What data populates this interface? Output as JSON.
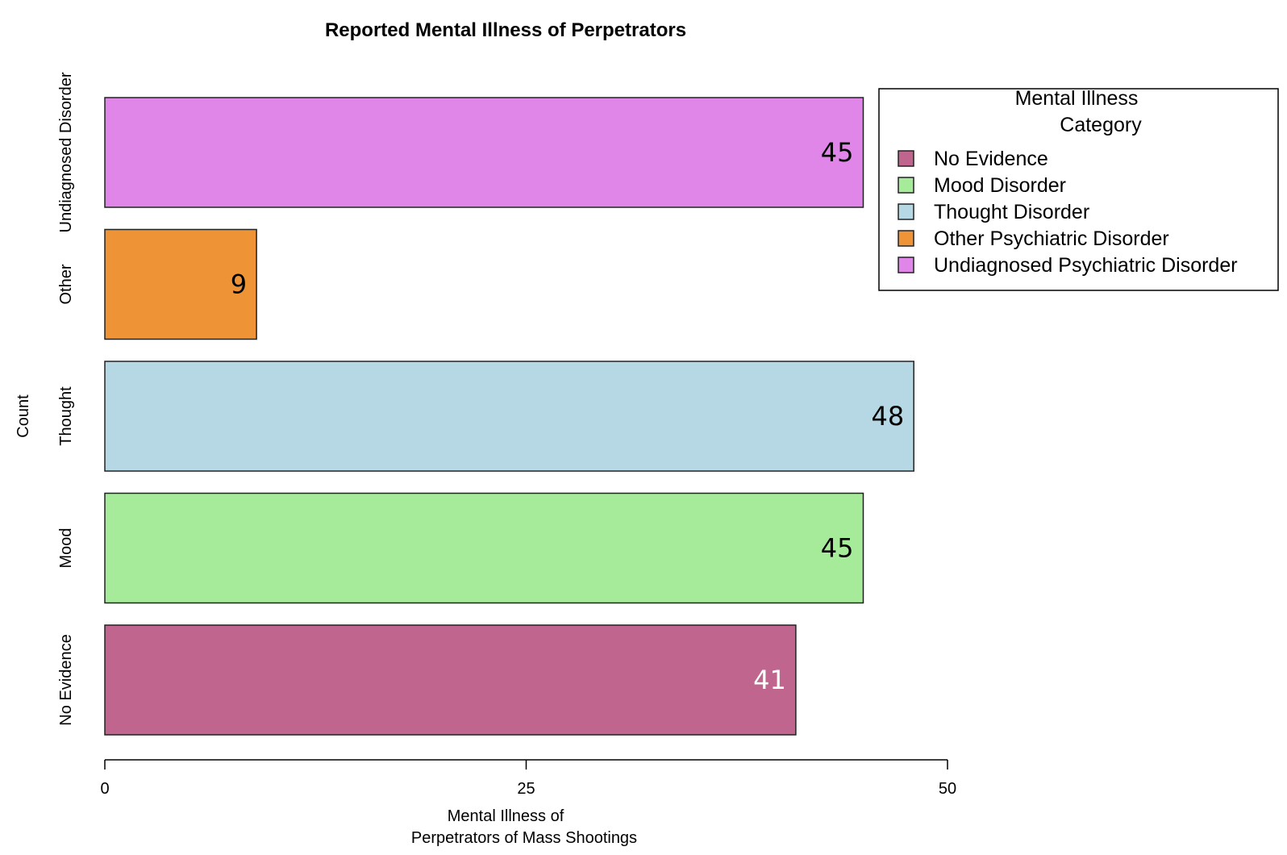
{
  "chart_data": {
    "type": "bar",
    "orientation": "horizontal",
    "title": "Reported Mental Illness of Perpetrators",
    "xlabel_lines": [
      "Mental Illness of",
      "Perpetrators of Mass Shootings"
    ],
    "ylabel": "Count",
    "xlim": [
      0,
      50
    ],
    "xticks": [
      0,
      25,
      50
    ],
    "categories": [
      "No Evidence",
      "Mood",
      "Thought",
      "Other",
      "Undiagnosed Disorder"
    ],
    "values": [
      41,
      45,
      48,
      9,
      45
    ],
    "value_labels": [
      "41",
      "45",
      "48",
      "9",
      "45"
    ],
    "colors": [
      "#c0668e",
      "#a6eb99",
      "#b6d8e4",
      "#ef9337",
      "#e086e8"
    ],
    "label_colors": [
      "#ffffff",
      "#000000",
      "#000000",
      "#000000",
      "#000000"
    ],
    "legend": {
      "title_lines": [
        "Mental Illness",
        "Category"
      ],
      "placement": "top-right",
      "entries": [
        {
          "label": "No Evidence",
          "color": "#c0668e"
        },
        {
          "label": "Mood Disorder",
          "color": "#a6eb99"
        },
        {
          "label": "Thought Disorder",
          "color": "#b6d8e4"
        },
        {
          "label": "Other Psychiatric Disorder",
          "color": "#ef9337"
        },
        {
          "label": "Undiagnosed Psychiatric Disorder",
          "color": "#e086e8"
        }
      ]
    },
    "grid": false
  }
}
